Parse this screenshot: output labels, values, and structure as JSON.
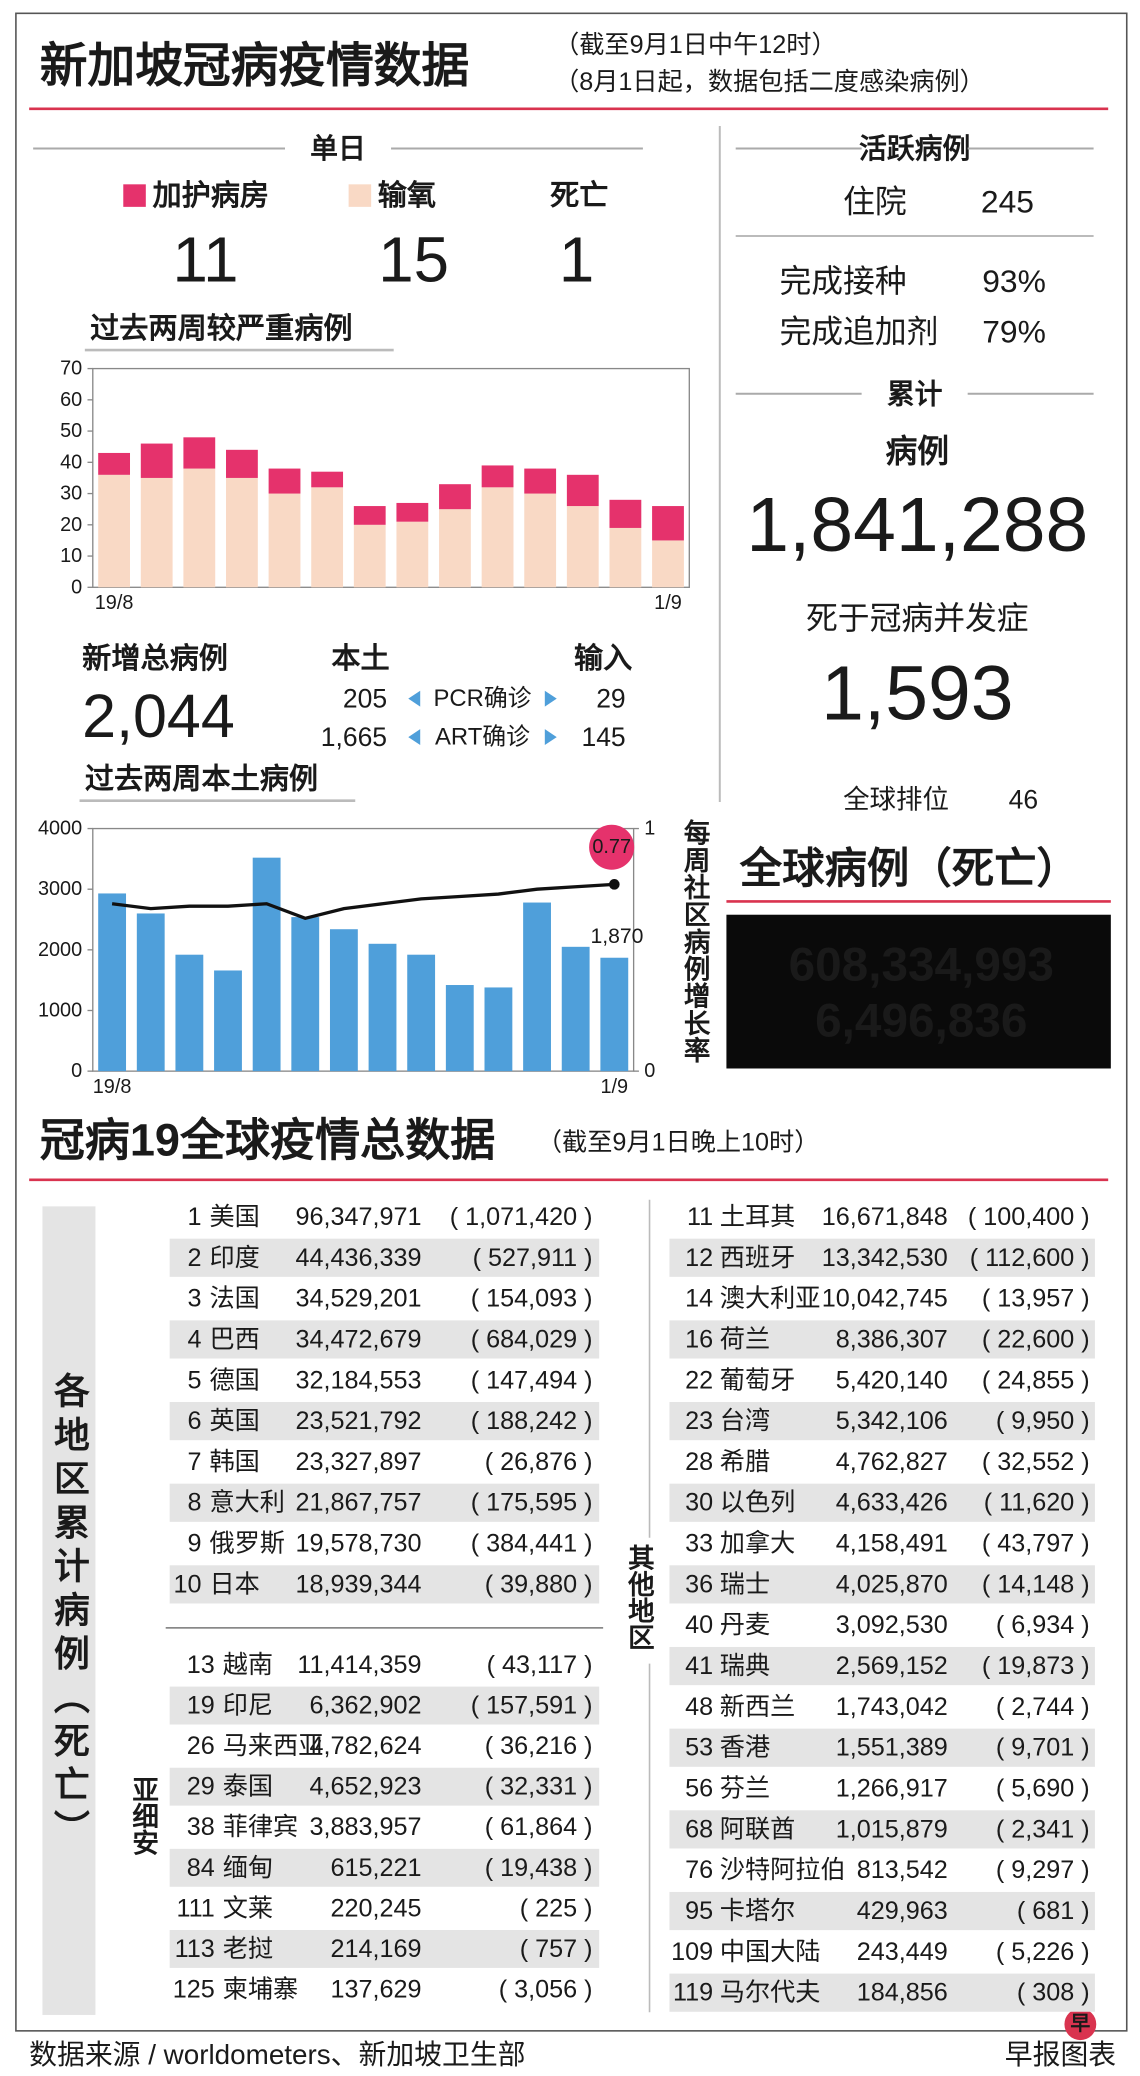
{
  "header": {
    "title": "新加坡冠病疫情数据",
    "notes": [
      "（截至9月1日中午12时）",
      "（8月1日起，数据包括二度感染病例）"
    ]
  },
  "daily": {
    "heading": "单日",
    "items": [
      {
        "label": "加护病房",
        "value": 11
      },
      {
        "label": "输氧",
        "value": 15
      },
      {
        "label": "死亡",
        "value": 1
      }
    ]
  },
  "chart_data": [
    {
      "type": "stacked_bar",
      "title": "过去两周较严重病例",
      "categories": [
        "19/8",
        null,
        null,
        null,
        null,
        null,
        null,
        null,
        null,
        null,
        null,
        null,
        null,
        "1/9"
      ],
      "series": [
        {
          "color": "#f9d9c5",
          "values": [
            36,
            35,
            38,
            35,
            30,
            32,
            20,
            21,
            25,
            32,
            30,
            26,
            19,
            15
          ]
        },
        {
          "color": "#e5326c",
          "values": [
            7,
            11,
            10,
            9,
            8,
            5,
            6,
            6,
            8,
            7,
            8,
            10,
            9,
            11
          ]
        }
      ],
      "ylim": [
        0,
        70
      ],
      "yticks": [
        0,
        10,
        20,
        30,
        40,
        50,
        60,
        70
      ]
    },
    {
      "type": "bar_line",
      "title": "过去两周本土病例",
      "categories": [
        "19/8",
        null,
        null,
        null,
        null,
        null,
        null,
        null,
        null,
        null,
        null,
        null,
        null,
        "1/9"
      ],
      "series": [
        {
          "type": "bar",
          "color": "#4f9fda",
          "values": [
            2930,
            2600,
            1920,
            1660,
            3520,
            2540,
            2340,
            2100,
            1920,
            1420,
            1380,
            2780,
            2050,
            1870
          ],
          "value_labels": [
            null,
            null,
            null,
            null,
            null,
            null,
            null,
            null,
            null,
            null,
            null,
            null,
            null,
            "1,870"
          ]
        },
        {
          "type": "line",
          "axis": "y2",
          "color": "#111111",
          "values": [
            0.69,
            0.67,
            0.68,
            0.68,
            0.69,
            0.63,
            0.67,
            0.69,
            0.71,
            0.72,
            0.73,
            0.75,
            0.76,
            0.77
          ],
          "value_labels": [
            null,
            null,
            null,
            null,
            null,
            null,
            null,
            null,
            null,
            null,
            null,
            null,
            null,
            "0.77"
          ]
        }
      ],
      "ylim": [
        0,
        4000
      ],
      "yticks": [
        0,
        1000,
        2000,
        3000,
        4000
      ],
      "y2lim": [
        0,
        1
      ],
      "y2ticks": [
        0,
        1
      ],
      "y2label": "每周社区病例增长率"
    }
  ],
  "new_cases": {
    "label": "新增总病例",
    "value": "2,044",
    "columns": [
      "本土",
      "输入"
    ],
    "rows": [
      {
        "label": "PCR确诊",
        "local": "205",
        "imported": "29"
      },
      {
        "label": "ART确诊",
        "local": "1,665",
        "imported": "145"
      }
    ]
  },
  "active": {
    "heading": "活跃病例",
    "rows": [
      [
        "住院",
        "245"
      ],
      [
        "完成接种",
        "93%"
      ],
      [
        "完成追加剂",
        "79%"
      ]
    ]
  },
  "cumulative": {
    "heading": "累计",
    "cases_label": "病例",
    "cases": "1,841,288",
    "deaths_label": "死于冠病并发症",
    "deaths": "1,593",
    "rank_label": "全球排位",
    "rank": "46"
  },
  "global": {
    "title": "全球病例（死亡）",
    "cases": "608,334,993",
    "deaths": "6,496,836"
  },
  "countries": {
    "title": "冠病19全球疫情总数据",
    "note": "（截至9月1日晚上10时）",
    "side_label": "各地区累计病例（死亡）",
    "top": [
      [
        1,
        "美国",
        "96,347,971",
        "( 1,071,420 )"
      ],
      [
        2,
        "印度",
        "44,436,339",
        "( 527,911 )"
      ],
      [
        3,
        "法国",
        "34,529,201",
        "( 154,093 )"
      ],
      [
        4,
        "巴西",
        "34,472,679",
        "( 684,029 )"
      ],
      [
        5,
        "德国",
        "32,184,553",
        "( 147,494 )"
      ],
      [
        6,
        "英国",
        "23,521,792",
        "( 188,242 )"
      ],
      [
        7,
        "韩国",
        "23,327,897",
        "( 26,876 )"
      ],
      [
        8,
        "意大利",
        "21,867,757",
        "( 175,595 )"
      ],
      [
        9,
        "俄罗斯",
        "19,578,730",
        "( 384,441 )"
      ],
      [
        10,
        "日本",
        "18,939,344",
        "( 39,880 )"
      ]
    ],
    "asean_label": "亚细安",
    "asean": [
      [
        13,
        "越南",
        "11,414,359",
        "( 43,117 )"
      ],
      [
        19,
        "印尼",
        "6,362,902",
        "( 157,591 )"
      ],
      [
        26,
        "马来西亚",
        "4,782,624",
        "( 36,216 )"
      ],
      [
        29,
        "泰国",
        "4,652,923",
        "( 32,331 )"
      ],
      [
        38,
        "菲律宾",
        "3,883,957",
        "( 61,864 )"
      ],
      [
        84,
        "缅甸",
        "615,221",
        "( 19,438 )"
      ],
      [
        111,
        "文莱",
        "220,245",
        "( 225 )"
      ],
      [
        113,
        "老挝",
        "214,169",
        "( 757 )"
      ],
      [
        125,
        "柬埔寨",
        "137,629",
        "( 3,056 )"
      ]
    ],
    "others_label": "其他地区",
    "others": [
      [
        11,
        "土耳其",
        "16,671,848",
        "( 100,400 )"
      ],
      [
        12,
        "西班牙",
        "13,342,530",
        "( 112,600 )"
      ],
      [
        14,
        "澳大利亚",
        "10,042,745",
        "( 13,957 )"
      ],
      [
        16,
        "荷兰",
        "8,386,307",
        "( 22,600 )"
      ],
      [
        22,
        "葡萄牙",
        "5,420,140",
        "( 24,855 )"
      ],
      [
        23,
        "台湾",
        "5,342,106",
        "( 9,950 )"
      ],
      [
        28,
        "希腊",
        "4,762,827",
        "( 32,552 )"
      ],
      [
        30,
        "以色列",
        "4,633,426",
        "( 11,620 )"
      ],
      [
        33,
        "加拿大",
        "4,158,491",
        "( 43,797 )"
      ],
      [
        36,
        "瑞士",
        "4,025,870",
        "( 14,148 )"
      ],
      [
        40,
        "丹麦",
        "3,092,530",
        "( 6,934 )"
      ],
      [
        41,
        "瑞典",
        "2,569,152",
        "( 19,873 )"
      ],
      [
        48,
        "新西兰",
        "1,743,042",
        "( 2,744 )"
      ],
      [
        53,
        "香港",
        "1,551,389",
        "( 9,701 )"
      ],
      [
        56,
        "芬兰",
        "1,266,917",
        "( 5,690 )"
      ],
      [
        68,
        "阿联酋",
        "1,015,879",
        "( 2,341 )"
      ],
      [
        76,
        "沙特阿拉伯",
        "813,542",
        "( 9,297 )"
      ],
      [
        95,
        "卡塔尔",
        "429,963",
        "( 681 )"
      ],
      [
        109,
        "中国大陆",
        "243,449",
        "( 5,226 )"
      ],
      [
        119,
        "马尔代夫",
        "184,856",
        "( 308 )"
      ]
    ]
  },
  "footer": {
    "source": "数据来源 / worldometers、新加坡卫生部",
    "credit": "早报图表",
    "logo": "早"
  }
}
